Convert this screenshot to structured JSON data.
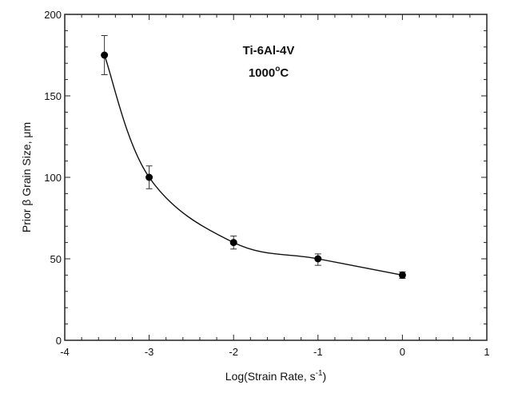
{
  "chart_data": {
    "type": "scatter",
    "title": "",
    "annotations": [
      "Ti-6Al-4V",
      "1000°C"
    ],
    "annotation_material": "Ti-6Al-4V",
    "annotation_temp_value": "1000",
    "annotation_temp_sup": "o",
    "annotation_temp_unit": "C",
    "xlabel": "Log(Strain Rate, s-1)",
    "xlabel_main": "Log(Strain Rate, s",
    "xlabel_sup": "-1",
    "xlabel_close": ")",
    "ylabel": "Prior β Grain Size, μm",
    "xlim": [
      -4,
      1
    ],
    "ylim": [
      0,
      200
    ],
    "x_ticks": [
      -4,
      -3,
      -2,
      -1,
      0,
      1
    ],
    "x_tick_labels": [
      "-4",
      "-3",
      "-2",
      "-1",
      "0",
      "1"
    ],
    "y_ticks": [
      0,
      50,
      100,
      150,
      200
    ],
    "y_tick_labels": [
      "0",
      "50",
      "100",
      "150",
      "200"
    ],
    "x_minor_step": 0.2,
    "y_minor_step": 10,
    "grid": false,
    "legend": null,
    "series": [
      {
        "name": "Ti-6Al-4V, 1000°C",
        "marker": "filled-circle",
        "line": "smooth-fit",
        "x": [
          -3.53,
          -3,
          -2,
          -1,
          0
        ],
        "y": [
          175,
          100,
          60,
          50,
          40
        ],
        "y_err_low": [
          163,
          93,
          56,
          46,
          38
        ],
        "y_err_high": [
          187,
          107,
          64,
          53,
          42
        ]
      }
    ],
    "colors": {
      "line": "#111111",
      "marker": "#000000",
      "axes": "#222222",
      "background": "#ffffff"
    }
  }
}
